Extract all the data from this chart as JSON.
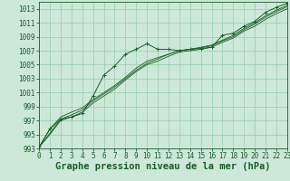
{
  "background_color": "#cce8d8",
  "grid_color": "#99ccaa",
  "line_color": "#1a5c28",
  "xlim": [
    0,
    23
  ],
  "ylim": [
    993,
    1014
  ],
  "yticks": [
    993,
    995,
    997,
    999,
    1001,
    1003,
    1005,
    1007,
    1009,
    1011,
    1013
  ],
  "xticks": [
    0,
    1,
    2,
    3,
    4,
    5,
    6,
    7,
    8,
    9,
    10,
    11,
    12,
    13,
    14,
    15,
    16,
    17,
    18,
    19,
    20,
    21,
    22,
    23
  ],
  "xlabel": "Graphe pression niveau de la mer (hPa)",
  "xlabel_fontsize": 7.5,
  "tick_fontsize": 5.5,
  "series": [
    [
      993.2,
      995.8,
      997.2,
      997.5,
      998.0,
      1000.5,
      1003.5,
      1004.8,
      1006.5,
      1007.2,
      1008.0,
      1007.2,
      1007.2,
      1007.0,
      1007.2,
      1007.3,
      1007.5,
      1009.2,
      1009.5,
      1010.5,
      1011.2,
      1012.5,
      1013.2,
      1013.8
    ],
    [
      993.2,
      995.8,
      997.5,
      998.2,
      998.8,
      1000.0,
      1001.0,
      1002.0,
      1003.2,
      1004.5,
      1005.5,
      1006.0,
      1006.5,
      1007.0,
      1007.2,
      1007.5,
      1007.8,
      1008.5,
      1009.2,
      1010.2,
      1011.0,
      1012.0,
      1012.8,
      1013.5
    ],
    [
      993.2,
      995.2,
      997.2,
      997.8,
      998.5,
      999.8,
      1000.8,
      1001.8,
      1003.0,
      1004.2,
      1005.2,
      1005.8,
      1006.5,
      1007.0,
      1007.2,
      1007.4,
      1007.7,
      1008.4,
      1009.0,
      1010.0,
      1010.8,
      1011.8,
      1012.6,
      1013.3
    ],
    [
      993.2,
      995.0,
      997.0,
      997.5,
      998.2,
      999.5,
      1000.5,
      1001.5,
      1002.8,
      1004.0,
      1005.0,
      1005.5,
      1006.2,
      1006.8,
      1007.0,
      1007.2,
      1007.5,
      1008.2,
      1008.8,
      1009.8,
      1010.5,
      1011.5,
      1012.3,
      1013.0
    ]
  ]
}
